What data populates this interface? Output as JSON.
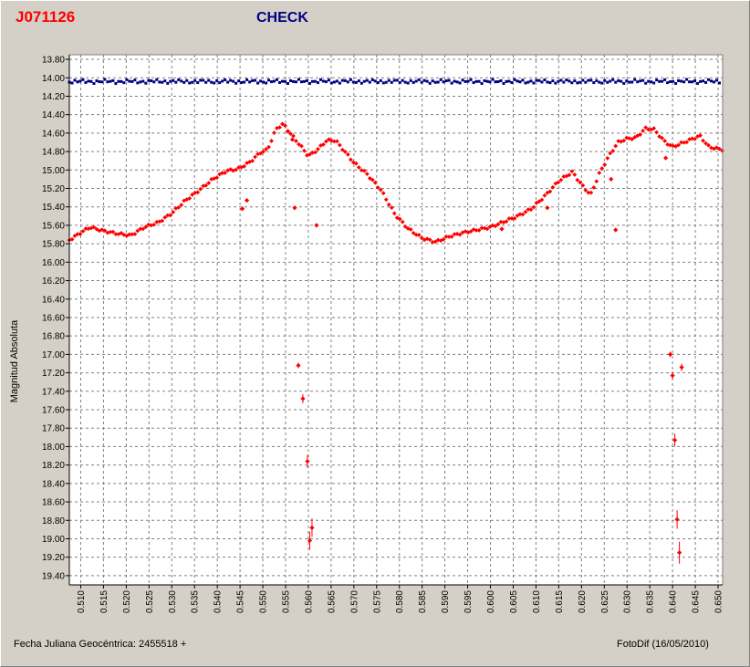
{
  "header": {
    "object_name": "J071126",
    "comparison_label": "CHECK"
  },
  "footer": {
    "date_label": "Fecha Juliana Geocéntrica: 2455518 +",
    "software_label": "FotoDif (16/05/2010)"
  },
  "colors": {
    "object": "#ff0000",
    "check": "#000080",
    "grid": "#808080",
    "plot_background": "#ffffff",
    "window_background": "#d4d0c8"
  },
  "chart_data": {
    "type": "scatter",
    "ylabel": "Magnitud Absoluta",
    "xlabel": "Fecha Juliana Geocéntrica: 2455518 +",
    "xlim": [
      0.5075,
      0.651
    ],
    "ylim": [
      19.5,
      13.75
    ],
    "y_inverted": true,
    "grid": true,
    "y_ticks": [
      "13.80",
      "14.00",
      "14.20",
      "14.40",
      "14.60",
      "14.80",
      "15.00",
      "15.20",
      "15.40",
      "15.60",
      "15.80",
      "16.00",
      "16.20",
      "16.40",
      "16.60",
      "16.80",
      "17.00",
      "17.20",
      "17.40",
      "17.60",
      "17.80",
      "18.00",
      "18.20",
      "18.40",
      "18.60",
      "18.80",
      "19.00",
      "19.20",
      "19.40"
    ],
    "x_ticks": [
      "0.510",
      "0.515",
      "0.520",
      "0.525",
      "0.530",
      "0.535",
      "0.540",
      "0.545",
      "0.550",
      "0.555",
      "0.560",
      "0.565",
      "0.570",
      "0.575",
      "0.580",
      "0.585",
      "0.590",
      "0.595",
      "0.600",
      "0.605",
      "0.610",
      "0.615",
      "0.620",
      "0.625",
      "0.630",
      "0.635",
      "0.640",
      "0.645",
      "0.650"
    ],
    "series": [
      {
        "name": "J071126",
        "color": "#ff0000",
        "anchors": [
          [
            0.5075,
            15.76
          ],
          [
            0.51,
            15.68
          ],
          [
            0.512,
            15.62
          ],
          [
            0.515,
            15.66
          ],
          [
            0.518,
            15.69
          ],
          [
            0.521,
            15.71
          ],
          [
            0.524,
            15.62
          ],
          [
            0.527,
            15.57
          ],
          [
            0.53,
            15.47
          ],
          [
            0.533,
            15.33
          ],
          [
            0.536,
            15.22
          ],
          [
            0.539,
            15.1
          ],
          [
            0.542,
            15.01
          ],
          [
            0.5445,
            14.99
          ],
          [
            0.547,
            14.92
          ],
          [
            0.5495,
            14.81
          ],
          [
            0.551,
            14.78
          ],
          [
            0.553,
            14.55
          ],
          [
            0.5545,
            14.5
          ],
          [
            0.556,
            14.6
          ],
          [
            0.558,
            14.72
          ],
          [
            0.56,
            14.85
          ],
          [
            0.562,
            14.78
          ],
          [
            0.564,
            14.68
          ],
          [
            0.566,
            14.68
          ],
          [
            0.568,
            14.8
          ],
          [
            0.57,
            14.92
          ],
          [
            0.573,
            15.05
          ],
          [
            0.576,
            15.22
          ],
          [
            0.579,
            15.48
          ],
          [
            0.582,
            15.64
          ],
          [
            0.585,
            15.74
          ],
          [
            0.588,
            15.78
          ],
          [
            0.591,
            15.72
          ],
          [
            0.594,
            15.68
          ],
          [
            0.597,
            15.65
          ],
          [
            0.6,
            15.62
          ],
          [
            0.603,
            15.56
          ],
          [
            0.606,
            15.5
          ],
          [
            0.609,
            15.42
          ],
          [
            0.612,
            15.28
          ],
          [
            0.615,
            15.12
          ],
          [
            0.618,
            15.02
          ],
          [
            0.62,
            15.16
          ],
          [
            0.622,
            15.27
          ],
          [
            0.624,
            15.03
          ],
          [
            0.626,
            14.85
          ],
          [
            0.628,
            14.7
          ],
          [
            0.63,
            14.66
          ],
          [
            0.632,
            14.65
          ],
          [
            0.634,
            14.55
          ],
          [
            0.636,
            14.56
          ],
          [
            0.638,
            14.68
          ],
          [
            0.64,
            14.75
          ],
          [
            0.643,
            14.69
          ],
          [
            0.646,
            14.63
          ],
          [
            0.648,
            14.75
          ],
          [
            0.651,
            14.78
          ]
        ],
        "outliers": [
          {
            "x": 0.5455,
            "y": 15.42
          },
          {
            "x": 0.5465,
            "y": 15.33
          },
          {
            "x": 0.5555,
            "y": 14.58
          },
          {
            "x": 0.5565,
            "y": 14.67
          },
          {
            "x": 0.557,
            "y": 15.41
          },
          {
            "x": 0.5618,
            "y": 15.6
          },
          {
            "x": 0.6025,
            "y": 15.64
          },
          {
            "x": 0.6125,
            "y": 15.41
          },
          {
            "x": 0.6265,
            "y": 15.1
          },
          {
            "x": 0.6275,
            "y": 15.65
          },
          {
            "x": 0.6385,
            "y": 14.87
          },
          {
            "x": 0.5578,
            "y": 17.12,
            "err": 0.03
          },
          {
            "x": 0.5588,
            "y": 17.48,
            "err": 0.05
          },
          {
            "x": 0.5598,
            "y": 18.16,
            "err": 0.07
          },
          {
            "x": 0.5603,
            "y": 19.02,
            "err": 0.1
          },
          {
            "x": 0.5608,
            "y": 18.88,
            "err": 0.1
          },
          {
            "x": 0.6395,
            "y": 17.0,
            "err": 0.03
          },
          {
            "x": 0.64,
            "y": 17.23,
            "err": 0.04
          },
          {
            "x": 0.6405,
            "y": 17.93,
            "err": 0.07
          },
          {
            "x": 0.641,
            "y": 18.79,
            "err": 0.1
          },
          {
            "x": 0.6415,
            "y": 19.15,
            "err": 0.12
          },
          {
            "x": 0.642,
            "y": 17.14,
            "err": 0.04
          }
        ]
      },
      {
        "name": "CHECK",
        "color": "#000080",
        "mean_magnitude": 14.04,
        "scatter": 0.015,
        "x_start": 0.5075,
        "x_end": 0.6505
      }
    ]
  }
}
